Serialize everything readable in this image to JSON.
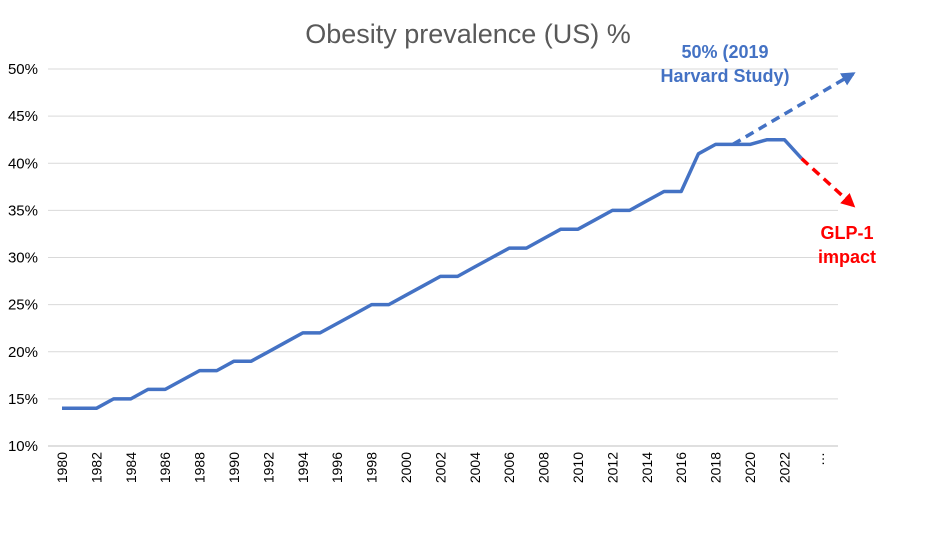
{
  "chart_data": {
    "type": "line",
    "title": "Obesity prevalence (US) %",
    "xlabel": "",
    "ylabel": "",
    "ylim": [
      10,
      50
    ],
    "y_ticks": [
      "10%",
      "15%",
      "20%",
      "25%",
      "30%",
      "35%",
      "40%",
      "45%",
      "50%"
    ],
    "x_ticks": [
      "1980",
      "1982",
      "1984",
      "1986",
      "1988",
      "1990",
      "1992",
      "1994",
      "1996",
      "1998",
      "2000",
      "2002",
      "2004",
      "2006",
      "2008",
      "2010",
      "2012",
      "2014",
      "2016",
      "2018",
      "2020",
      "2022",
      "…"
    ],
    "grid": true,
    "legend": "none",
    "series": [
      {
        "color": "#4472C4",
        "x": [
          1980,
          1981,
          1982,
          1983,
          1984,
          1985,
          1986,
          1987,
          1988,
          1989,
          1990,
          1991,
          1992,
          1993,
          1994,
          1995,
          1996,
          1997,
          1998,
          1999,
          2000,
          2001,
          2002,
          2003,
          2004,
          2005,
          2006,
          2007,
          2008,
          2009,
          2010,
          2011,
          2012,
          2013,
          2014,
          2015,
          2016,
          2017,
          2018,
          2019,
          2020,
          2021,
          2022,
          2023
        ],
        "values": [
          14,
          14,
          14,
          15,
          15,
          16,
          16,
          17,
          18,
          18,
          19,
          19,
          20,
          21,
          22,
          22,
          23,
          24,
          25,
          25,
          26,
          27,
          28,
          28,
          29,
          30,
          31,
          31,
          32,
          33,
          33,
          34,
          35,
          35,
          36,
          37,
          37,
          41,
          42,
          42,
          42,
          42.5,
          42.5,
          40.5
        ]
      }
    ],
    "projections": [
      {
        "label_lines": [
          "50% (2019",
          "Harvard Study)"
        ],
        "color": "#4472C4",
        "from": [
          2019,
          42
        ],
        "to": [
          2026,
          49.5
        ]
      },
      {
        "label_lines": [
          "GLP-1",
          "impact"
        ],
        "color": "#FF0000",
        "from": [
          2023,
          40.5
        ],
        "to": [
          2026,
          35.5
        ]
      }
    ]
  }
}
